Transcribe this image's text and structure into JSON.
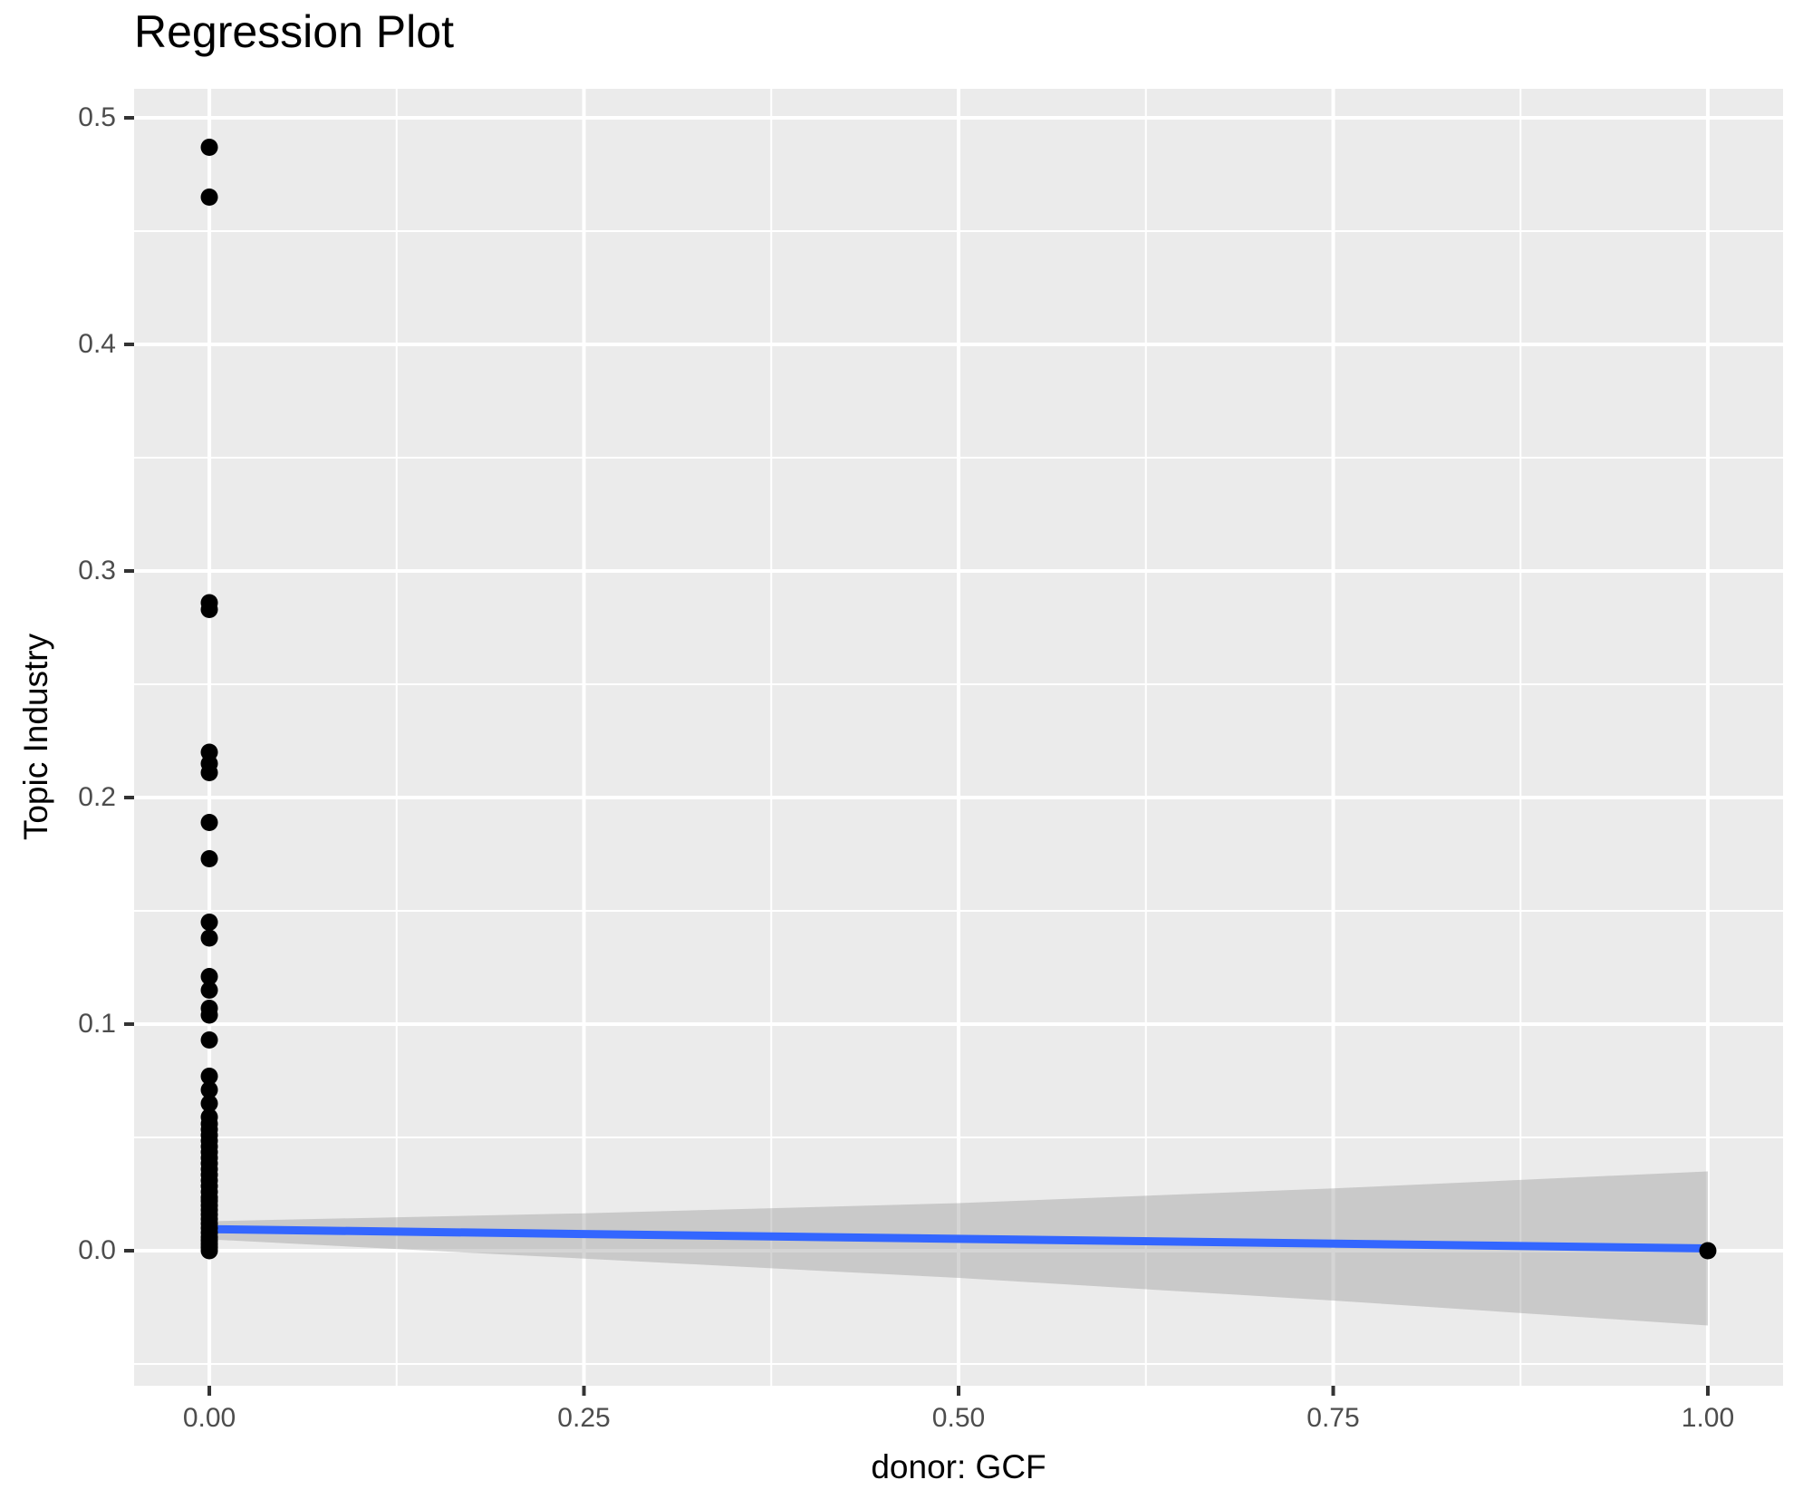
{
  "title": "Regression Plot",
  "chart_data": {
    "type": "scatter",
    "title": "Regression Plot",
    "xlabel": "donor: GCF",
    "ylabel": "Topic Industry",
    "x_ticks": [
      0.0,
      0.25,
      0.5,
      0.75,
      1.0
    ],
    "x_tick_labels": [
      "0.00",
      "0.25",
      "0.50",
      "0.75",
      "1.00"
    ],
    "y_ticks": [
      0.0,
      0.1,
      0.2,
      0.3,
      0.4,
      0.5
    ],
    "y_tick_labels": [
      "0.0",
      "0.1",
      "0.2",
      "0.3",
      "0.4",
      "0.5"
    ],
    "xlim": [
      -0.0502,
      1.0502
    ],
    "ylim": [
      -0.0596,
      0.5128
    ],
    "grid": true,
    "legend": false,
    "points": [
      [
        0,
        0.487
      ],
      [
        0,
        0.465
      ],
      [
        0,
        0.286
      ],
      [
        0,
        0.283
      ],
      [
        0,
        0.22
      ],
      [
        0,
        0.215
      ],
      [
        0,
        0.211
      ],
      [
        0,
        0.189
      ],
      [
        0,
        0.173
      ],
      [
        0,
        0.145
      ],
      [
        0,
        0.138
      ],
      [
        0,
        0.121
      ],
      [
        0,
        0.115
      ],
      [
        0,
        0.107
      ],
      [
        0,
        0.104
      ],
      [
        0,
        0.093
      ],
      [
        0,
        0.077
      ],
      [
        0,
        0.071
      ],
      [
        0,
        0.065
      ],
      [
        0,
        0.059
      ],
      [
        0,
        0.056
      ],
      [
        0,
        0.0535
      ],
      [
        0,
        0.051
      ],
      [
        0,
        0.0485
      ],
      [
        0,
        0.046
      ],
      [
        0,
        0.0435
      ],
      [
        0,
        0.041
      ],
      [
        0,
        0.0385
      ],
      [
        0,
        0.036
      ],
      [
        0,
        0.0335
      ],
      [
        0,
        0.031
      ],
      [
        0,
        0.0285
      ],
      [
        0,
        0.026
      ],
      [
        0,
        0.0235
      ],
      [
        0,
        0.022
      ],
      [
        0,
        0.02
      ],
      [
        0,
        0.018
      ],
      [
        0,
        0.016
      ],
      [
        0,
        0.014
      ],
      [
        0,
        0.012
      ],
      [
        0,
        0.01
      ],
      [
        0,
        0.008
      ],
      [
        0,
        0.006
      ],
      [
        0,
        0.0045
      ],
      [
        0,
        0.003
      ],
      [
        0,
        0.0015
      ],
      [
        0,
        0.0
      ],
      [
        1,
        0.0
      ]
    ],
    "regression_line": {
      "x": [
        0,
        1
      ],
      "y": [
        0.0095,
        0.001
      ],
      "color": "#3366FF",
      "width": 9
    },
    "confidence_band": {
      "x": [
        0,
        0.25,
        0.5,
        0.75,
        1
      ],
      "top": [
        0.013,
        0.0165,
        0.021,
        0.0275,
        0.035
      ],
      "bottom": [
        0.005,
        -0.0035,
        -0.012,
        -0.022,
        -0.033
      ],
      "color": "#9c9c9c",
      "opacity": 0.42
    },
    "colors": {
      "panel_bg": "#EBEBEB",
      "grid": "#FFFFFF",
      "point": "#000000",
      "tick_text": "#4D4D4D",
      "tick_mark": "#333333"
    },
    "point_radius": 9.5
  }
}
